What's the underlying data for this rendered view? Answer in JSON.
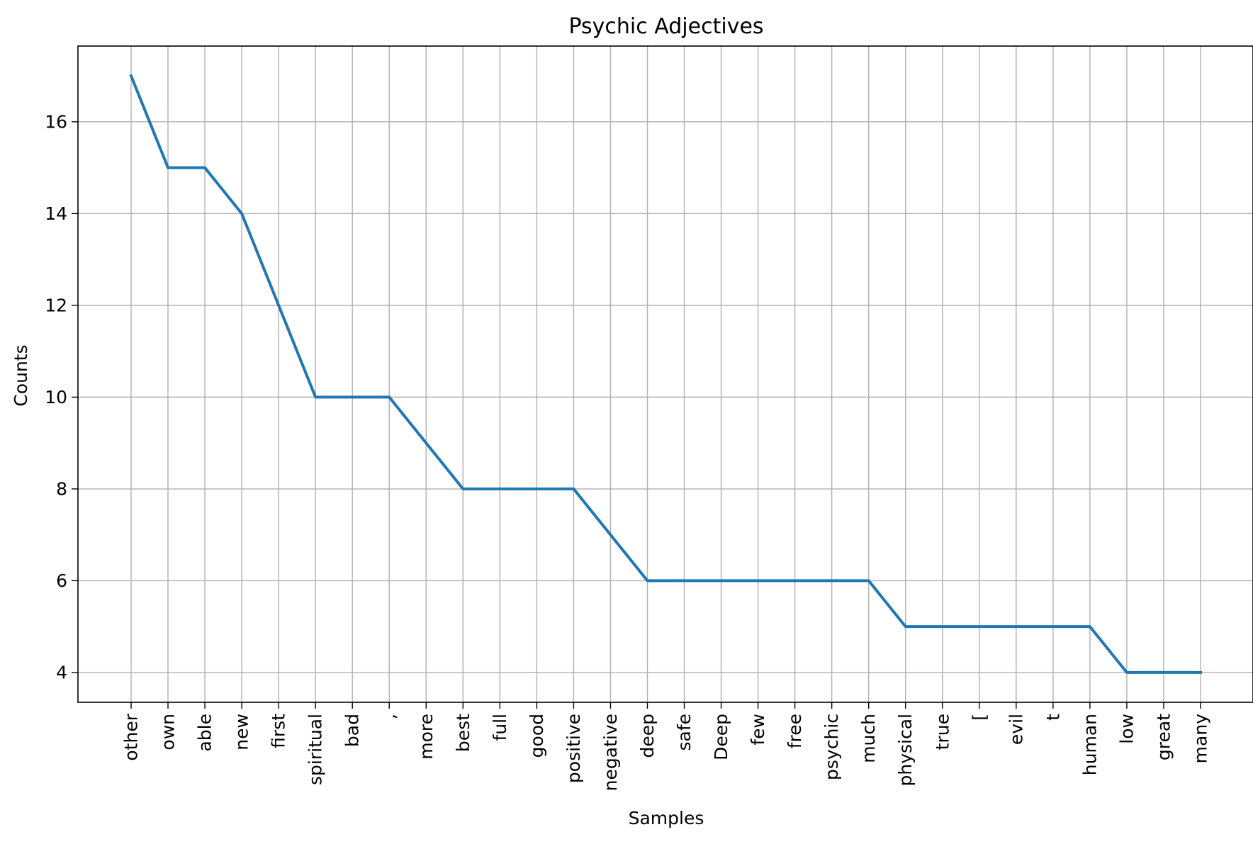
{
  "chart_data": {
    "type": "line",
    "title": "Psychic Adjectives",
    "xlabel": "Samples",
    "ylabel": "Counts",
    "ylim": [
      3.35,
      17.65
    ],
    "yticks": [
      4,
      6,
      8,
      10,
      12,
      14,
      16
    ],
    "grid": true,
    "line_color": "#1f77b4",
    "grid_color": "#b0b0b0",
    "categories": [
      "other",
      "own",
      "able",
      "new",
      "first",
      "spiritual",
      "bad",
      ",",
      "more",
      "best",
      "full",
      "good",
      "positive",
      "negative",
      "deep",
      "safe",
      "Deep",
      "few",
      "free",
      "psychic",
      "much",
      "physical",
      "true",
      "[",
      "evil",
      "t",
      "human",
      "low",
      "great",
      "many"
    ],
    "series": [
      {
        "values": [
          17,
          15,
          15,
          14,
          12,
          10,
          10,
          10,
          9,
          8,
          8,
          8,
          8,
          7,
          6,
          6,
          6,
          6,
          6,
          6,
          6,
          5,
          5,
          5,
          5,
          5,
          5,
          4,
          4,
          4
        ]
      }
    ]
  }
}
